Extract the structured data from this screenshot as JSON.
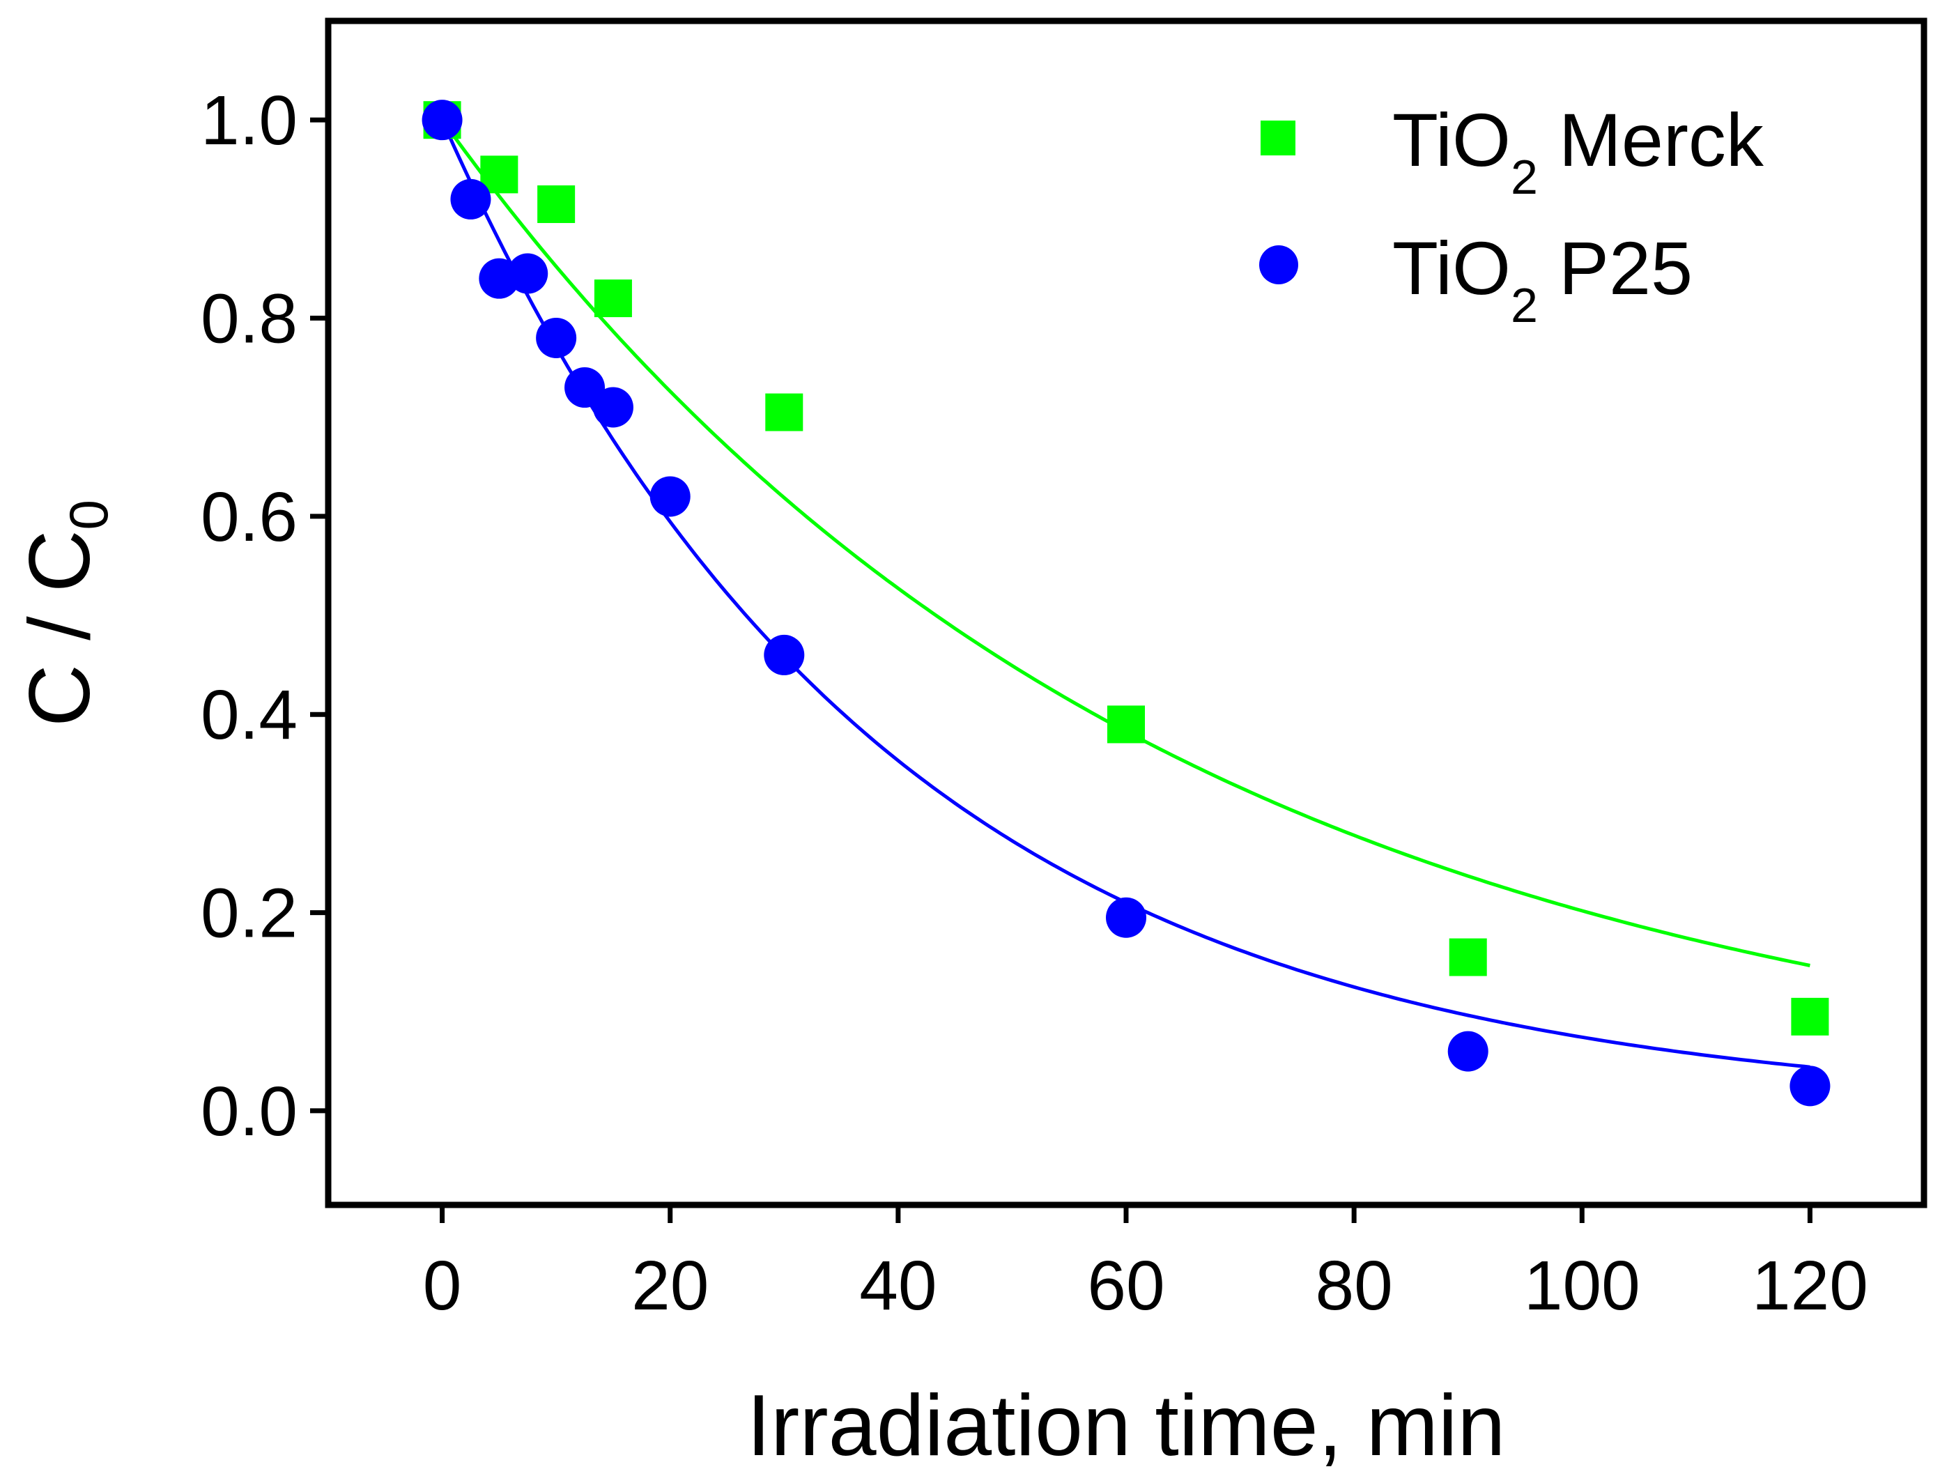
{
  "chart_data": {
    "type": "scatter",
    "title": "",
    "xlabel": "Irradiation time, min",
    "ylabel": {
      "main": "C / C",
      "subscript": "0"
    },
    "xlim": [
      -10,
      130
    ],
    "ylim": [
      -0.095,
      1.1
    ],
    "xticks": [
      0,
      20,
      40,
      60,
      80,
      100,
      120
    ],
    "yticks": [
      0.0,
      0.2,
      0.4,
      0.6,
      0.8,
      1.0
    ],
    "xtick_labels": [
      "0",
      "20",
      "40",
      "60",
      "80",
      "100",
      "120"
    ],
    "ytick_labels": [
      "0.0",
      "0.2",
      "0.4",
      "0.6",
      "0.8",
      "1.0"
    ],
    "grid": false,
    "legend_position": "top-right",
    "series": [
      {
        "name": "TiO2 Merck",
        "legend": {
          "pre": "TiO",
          "sub": "2",
          "post": " Merck"
        },
        "marker": "square",
        "color": "#00ff00",
        "x": [
          0,
          5,
          10,
          15,
          30,
          60,
          90,
          120
        ],
        "y": [
          1.0,
          0.945,
          0.915,
          0.82,
          0.705,
          0.39,
          0.155,
          0.095
        ],
        "fit": {
          "type": "exp",
          "k": 0.016,
          "xmax": 120
        }
      },
      {
        "name": "TiO2 P25",
        "legend": {
          "pre": "TiO",
          "sub": "2",
          "post": " P25"
        },
        "marker": "circle",
        "color": "#0000ff",
        "x": [
          0,
          2.5,
          5,
          7.5,
          10,
          12.5,
          15,
          20,
          30,
          60,
          90,
          120
        ],
        "y": [
          1.0,
          0.92,
          0.84,
          0.845,
          0.78,
          0.73,
          0.71,
          0.62,
          0.46,
          0.195,
          0.06,
          0.025
        ],
        "fit": {
          "type": "exp",
          "k": 0.026,
          "xmax": 120
        }
      }
    ]
  }
}
